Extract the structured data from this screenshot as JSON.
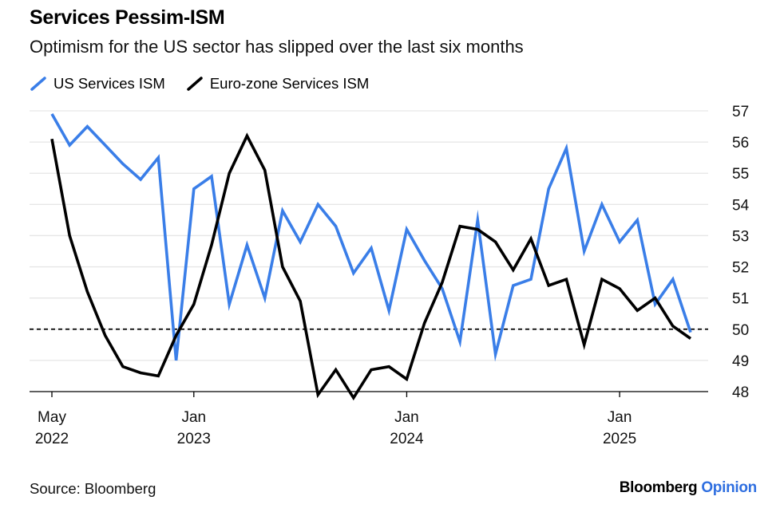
{
  "title": "Services Pessim-ISM",
  "subtitle": "Optimism for the US sector has slipped over the last six months",
  "source": "Source: Bloomberg",
  "brand": {
    "name": "Bloomberg",
    "suffix": "Opinion"
  },
  "colors": {
    "us": "#3a7ee8",
    "euro": "#000000",
    "brand_accent": "#2f6fe0",
    "grid": "#e6e6e6"
  },
  "chart_data": {
    "type": "line",
    "x": [
      "2022-05",
      "2022-06",
      "2022-07",
      "2022-08",
      "2022-09",
      "2022-10",
      "2022-11",
      "2022-12",
      "2023-01",
      "2023-02",
      "2023-03",
      "2023-04",
      "2023-05",
      "2023-06",
      "2023-07",
      "2023-08",
      "2023-09",
      "2023-10",
      "2023-11",
      "2023-12",
      "2024-01",
      "2024-02",
      "2024-03",
      "2024-04",
      "2024-05",
      "2024-06",
      "2024-07",
      "2024-08",
      "2024-09",
      "2024-10",
      "2024-11",
      "2024-12",
      "2025-01",
      "2025-02",
      "2025-03",
      "2025-04",
      "2025-05"
    ],
    "series": [
      {
        "name": "US Services ISM",
        "color": "#3a7ee8",
        "values": [
          56.9,
          55.9,
          56.5,
          55.9,
          55.3,
          54.8,
          55.5,
          49.0,
          54.5,
          54.9,
          50.8,
          52.7,
          51.0,
          53.8,
          52.8,
          54.0,
          53.3,
          51.8,
          52.6,
          50.6,
          53.2,
          52.2,
          51.3,
          49.6,
          53.5,
          49.2,
          51.4,
          51.6,
          54.5,
          55.8,
          52.5,
          54.0,
          52.8,
          53.5,
          50.8,
          51.6,
          49.9
        ]
      },
      {
        "name": "Euro-zone Services ISM",
        "color": "#000000",
        "values": [
          56.1,
          53.0,
          51.2,
          49.8,
          48.8,
          48.6,
          48.5,
          49.8,
          50.8,
          52.7,
          55.0,
          56.2,
          55.1,
          52.0,
          50.9,
          47.9,
          48.7,
          47.8,
          48.7,
          48.8,
          48.4,
          50.2,
          51.5,
          53.3,
          53.2,
          52.8,
          51.9,
          52.9,
          51.4,
          51.6,
          49.5,
          51.6,
          51.3,
          50.6,
          51.0,
          50.1,
          49.7
        ]
      }
    ],
    "reference_line": 50,
    "ylim": [
      48,
      57
    ],
    "yticks": [
      48,
      49,
      50,
      51,
      52,
      53,
      54,
      55,
      56,
      57
    ],
    "xticks": [
      {
        "x": "2022-05",
        "month": "May",
        "year": "2022"
      },
      {
        "x": "2023-01",
        "month": "Jan",
        "year": "2023"
      },
      {
        "x": "2024-01",
        "month": "Jan",
        "year": "2024"
      },
      {
        "x": "2025-01",
        "month": "Jan",
        "year": "2025"
      }
    ],
    "grid": true,
    "legend_position": "top-left"
  }
}
